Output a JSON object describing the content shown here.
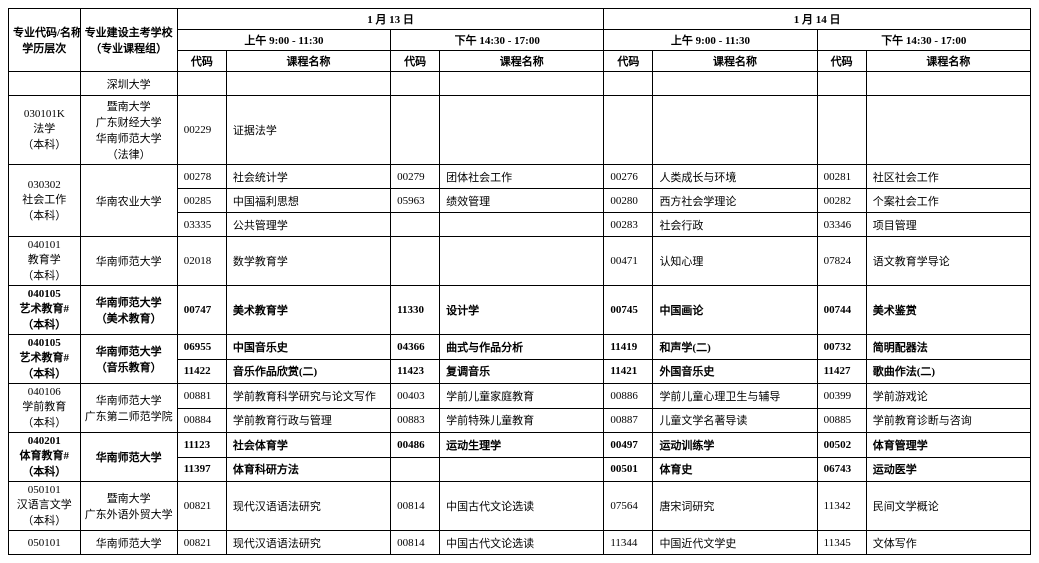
{
  "header": {
    "major_col": "专业代码/名称\n学历层次",
    "school_col": "专业建设主考学校\n（专业课程组）",
    "day1": "1 月 13 日",
    "day2": "1 月 14 日",
    "am": "上午  9:00 - 11:30",
    "pm": "下午  14:30 - 17:00",
    "code": "代码",
    "course": "课程名称"
  },
  "rows": [
    {
      "type": "single",
      "tall": false,
      "bold": false,
      "major": "",
      "school": "深圳大学",
      "cells": [
        "",
        "",
        "",
        "",
        "",
        "",
        "",
        ""
      ]
    },
    {
      "type": "single",
      "tall": true,
      "bold": false,
      "major": "030101K\n法学\n（本科）",
      "school": "暨南大学\n广东财经大学\n华南师范大学\n（法律）",
      "cells": [
        "00229",
        "证据法学",
        "",
        "",
        "",
        "",
        "",
        ""
      ]
    },
    {
      "type": "group",
      "major": "030302\n社会工作\n（本科）",
      "school": "华南农业大学",
      "schoolRowspan": 3,
      "bold": false,
      "sub": [
        [
          "00278",
          "社会统计学",
          "00279",
          "团体社会工作",
          "00276",
          "人类成长与环境",
          "00281",
          "社区社会工作"
        ],
        [
          "00285",
          "中国福利思想",
          "05963",
          "绩效管理",
          "00280",
          "西方社会学理论",
          "00282",
          "个案社会工作"
        ],
        [
          "03335",
          "公共管理学",
          "",
          "",
          "00283",
          "社会行政",
          "03346",
          "项目管理"
        ]
      ]
    },
    {
      "type": "single",
      "tall": true,
      "bold": false,
      "major": "040101\n教育学\n（本科）",
      "school": "华南师范大学",
      "cells": [
        "02018",
        "数学教育学",
        "",
        "",
        "00471",
        "认知心理",
        "07824",
        "语文教育学导论"
      ]
    },
    {
      "type": "single",
      "tall": true,
      "bold": true,
      "major": "040105\n艺术教育#\n（本科）",
      "school": "华南师范大学\n（美术教育）",
      "cells": [
        "00747",
        "美术教育学",
        "11330",
        "设计学",
        "00745",
        "中国画论",
        "00744",
        "美术鉴赏"
      ]
    },
    {
      "type": "group",
      "major": "040105\n艺术教育#\n（本科）",
      "school": "华南师范大学\n（音乐教育）",
      "schoolRowspan": 2,
      "bold": true,
      "sub": [
        [
          "06955",
          "中国音乐史",
          "04366",
          "曲式与作品分析",
          "11419",
          "和声学(二)",
          "00732",
          "简明配器法"
        ],
        [
          "11422",
          "音乐作品欣赏(二)",
          "11423",
          "复调音乐",
          "11421",
          "外国音乐史",
          "11427",
          "歌曲作法(二)"
        ]
      ]
    },
    {
      "type": "group",
      "major": "040106\n学前教育\n（本科）",
      "school": "华南师范大学\n广东第二师范学院",
      "schoolRowspan": 2,
      "bold": false,
      "sub": [
        [
          "00881",
          "学前教育科学研究与论文写作",
          "00403",
          "学前儿童家庭教育",
          "00886",
          "学前儿童心理卫生与辅导",
          "00399",
          "学前游戏论"
        ],
        [
          "00884",
          "学前教育行政与管理",
          "00883",
          "学前特殊儿童教育",
          "00887",
          "儿童文学名著导读",
          "00885",
          "学前教育诊断与咨询"
        ]
      ]
    },
    {
      "type": "group",
      "major": "040201\n体育教育#\n（本科）",
      "school": "华南师范大学",
      "schoolRowspan": 2,
      "bold": true,
      "sub": [
        [
          "11123",
          "社会体育学",
          "00486",
          "运动生理学",
          "00497",
          "运动训练学",
          "00502",
          "体育管理学"
        ],
        [
          "11397",
          "体育科研方法",
          "",
          "",
          "00501",
          "体育史",
          "06743",
          "运动医学"
        ]
      ]
    },
    {
      "type": "single",
      "tall": true,
      "bold": false,
      "major": "050101\n汉语言文学\n（本科）",
      "school": "暨南大学\n广东外语外贸大学",
      "cells": [
        "00821",
        "现代汉语语法研究",
        "00814",
        "中国古代文论选读",
        "07564",
        "唐宋词研究",
        "11342",
        "民间文学概论"
      ]
    },
    {
      "type": "single",
      "tall": false,
      "bold": false,
      "major": "050101",
      "school": "华南师范大学",
      "cells": [
        "00821",
        "现代汉语语法研究",
        "00814",
        "中国古代文论选读",
        "11344",
        "中国近代文学史",
        "11345",
        "文体写作"
      ]
    }
  ]
}
